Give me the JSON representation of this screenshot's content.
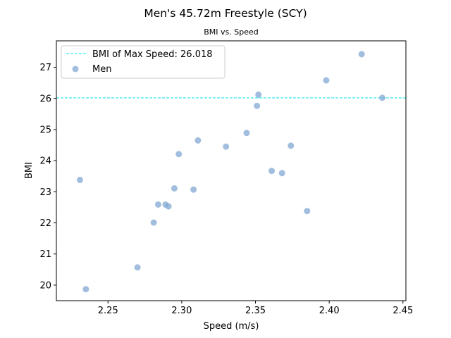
{
  "chart_data": {
    "type": "scatter",
    "title": "Men's 45.72m Freestyle (SCY)",
    "subtitle": "BMI vs. Speed",
    "xlabel": "Speed (m/s)",
    "ylabel": "BMI",
    "xlim": [
      2.215,
      2.452
    ],
    "ylim": [
      19.5,
      27.85
    ],
    "xticks": [
      "2.25",
      "2.30",
      "2.35",
      "2.40",
      "2.45"
    ],
    "xtick_values": [
      2.25,
      2.3,
      2.35,
      2.4,
      2.45
    ],
    "yticks": [
      "20",
      "21",
      "22",
      "23",
      "24",
      "25",
      "26",
      "27"
    ],
    "ytick_values": [
      20,
      21,
      22,
      23,
      24,
      25,
      26,
      27
    ],
    "grid": false,
    "legend_position": "top-left",
    "reference_line": {
      "label": "BMI of Max Speed: 26.018",
      "value": 26.018,
      "color": "#00e5ee"
    },
    "series": [
      {
        "name": "Men",
        "color": "#7ba2d0",
        "points": [
          {
            "x": 2.231,
            "y": 23.38
          },
          {
            "x": 2.235,
            "y": 19.87
          },
          {
            "x": 2.27,
            "y": 20.57
          },
          {
            "x": 2.281,
            "y": 22.01
          },
          {
            "x": 2.284,
            "y": 22.59
          },
          {
            "x": 2.289,
            "y": 22.59
          },
          {
            "x": 2.291,
            "y": 22.53
          },
          {
            "x": 2.295,
            "y": 23.11
          },
          {
            "x": 2.298,
            "y": 24.21
          },
          {
            "x": 2.308,
            "y": 23.07
          },
          {
            "x": 2.311,
            "y": 24.65
          },
          {
            "x": 2.33,
            "y": 24.45
          },
          {
            "x": 2.344,
            "y": 24.89
          },
          {
            "x": 2.351,
            "y": 25.76
          },
          {
            "x": 2.352,
            "y": 26.12
          },
          {
            "x": 2.361,
            "y": 23.67
          },
          {
            "x": 2.368,
            "y": 23.6
          },
          {
            "x": 2.374,
            "y": 24.48
          },
          {
            "x": 2.385,
            "y": 22.38
          },
          {
            "x": 2.398,
            "y": 26.58
          },
          {
            "x": 2.422,
            "y": 27.42
          },
          {
            "x": 2.436,
            "y": 26.02
          }
        ]
      }
    ]
  }
}
